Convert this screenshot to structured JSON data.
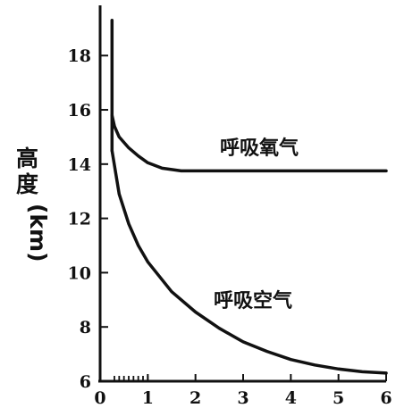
{
  "chart_data": {
    "type": "line",
    "title": "",
    "xlabel": "",
    "ylabel": "高度",
    "ylabel_unit": "(km)",
    "xlim": [
      0,
      6
    ],
    "ylim": [
      6,
      20
    ],
    "x_ticks": [
      "0",
      "1",
      "2",
      "3",
      "4",
      "5",
      "6"
    ],
    "y_ticks": [
      "6",
      "8",
      "10",
      "12",
      "14",
      "16",
      "18"
    ],
    "grid": false,
    "series": [
      {
        "name": "呼吸氧气",
        "x": [
          0.25,
          0.3,
          0.4,
          0.6,
          0.8,
          1.0,
          1.3,
          1.7,
          2.0,
          3.0,
          4.0,
          5.0,
          6.0
        ],
        "y": [
          15.8,
          15.4,
          15.0,
          14.6,
          14.3,
          14.05,
          13.85,
          13.75,
          13.75,
          13.75,
          13.75,
          13.75,
          13.75
        ]
      },
      {
        "name": "呼吸空气",
        "x": [
          0.25,
          0.4,
          0.6,
          0.8,
          1.0,
          1.5,
          2.0,
          2.5,
          3.0,
          3.5,
          4.0,
          4.5,
          5.0,
          5.5,
          6.0
        ],
        "y": [
          14.5,
          12.9,
          11.8,
          11.0,
          10.4,
          9.3,
          8.55,
          7.95,
          7.45,
          7.1,
          6.8,
          6.6,
          6.45,
          6.35,
          6.3
        ]
      }
    ],
    "start_segment": {
      "x": [
        0.25,
        0.25
      ],
      "y": [
        14.5,
        19.3
      ]
    }
  }
}
